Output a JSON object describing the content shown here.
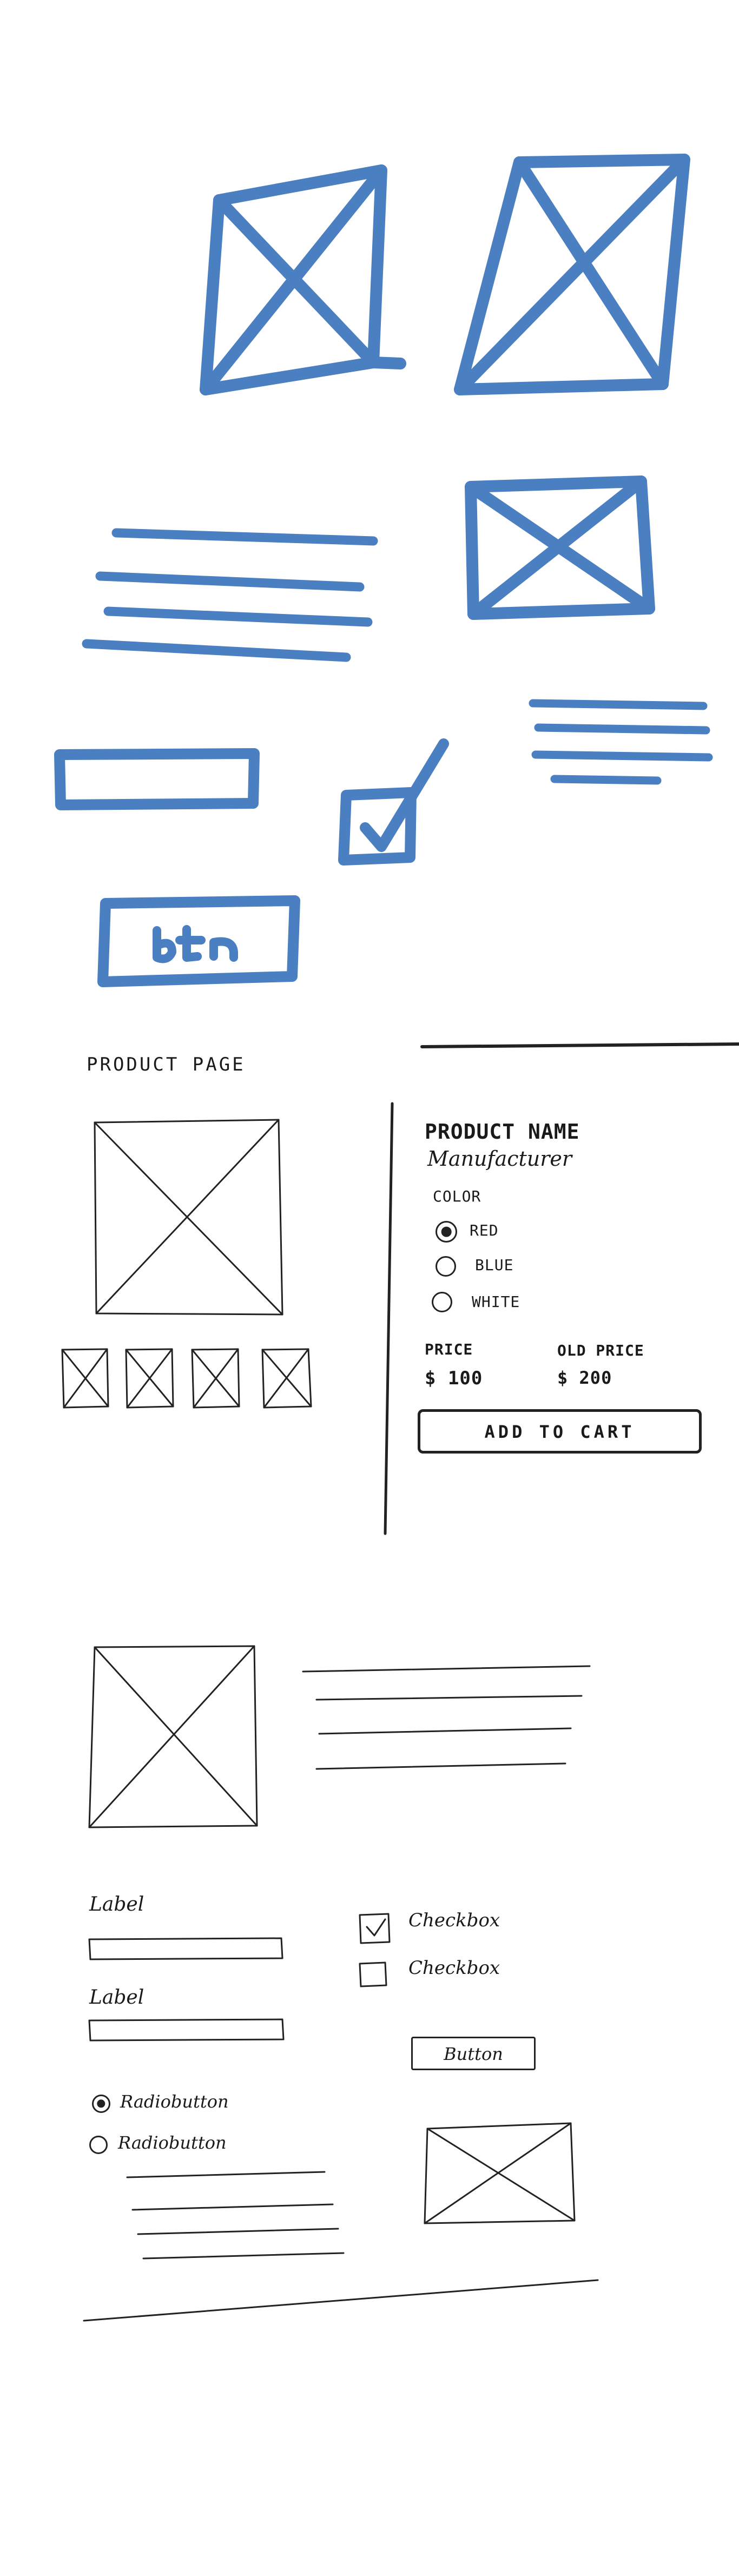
{
  "colors": {
    "marker_blue": "#4a7fc1",
    "pen_ink": "#222222",
    "paper": "#ffffff"
  },
  "sketch1_marker_symbols": {
    "button_text": "btn"
  },
  "sketch2_product_page": {
    "page_title": "PRODUCT PAGE",
    "product_name": "PRODUCT NAME",
    "manufacturer": "Manufacturer",
    "color_label": "COLOR",
    "color_options": [
      {
        "label": "RED",
        "selected": true
      },
      {
        "label": "BLUE",
        "selected": false
      },
      {
        "label": "WHITE",
        "selected": false
      }
    ],
    "price_label": "PRICE",
    "price_value": "$ 100",
    "old_price_label": "OLD PRICE",
    "old_price_value": "$ 200",
    "add_to_cart": "ADD TO CART"
  },
  "sketch3_form": {
    "label_1": "Label",
    "label_2": "Label",
    "checkbox_1": "Checkbox",
    "checkbox_2": "Checkbox",
    "button": "Button",
    "radio_1": "Radiobutton",
    "radio_2": "Radiobutton"
  }
}
